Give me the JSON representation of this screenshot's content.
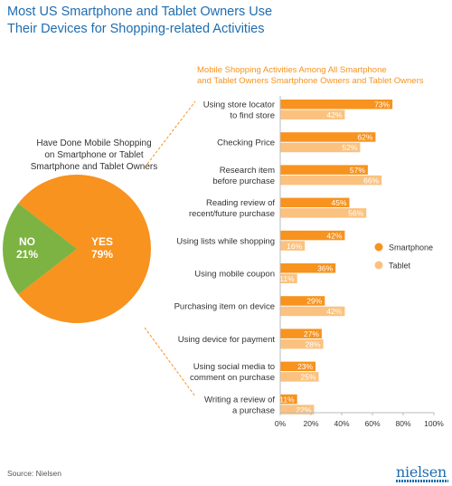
{
  "title": {
    "line1": "Most US Smartphone and Tablet Owners Use",
    "line2": "Their Devices for Shopping-related Activities"
  },
  "pie": {
    "heading": [
      "Have Done Mobile Shopping",
      "on Smartphone or Tablet",
      "Smartphone and Tablet Owners"
    ]
  },
  "footer": {
    "source": "Source: Nielsen",
    "logo": "nielsen"
  },
  "colors": {
    "smartphone": "#f7931e",
    "tablet": "#fbc27f",
    "pie_yes": "#f7931e",
    "pie_no": "#7cb342",
    "title": "#1f6db0",
    "bar_heading": "#f7931e",
    "connector": "#f7931e"
  },
  "chart_data": [
    {
      "type": "pie",
      "slices": [
        {
          "label": "YES",
          "value": 79,
          "value_label": "79%"
        },
        {
          "label": "NO",
          "value": 21,
          "value_label": "21%"
        }
      ]
    },
    {
      "type": "bar",
      "orientation": "horizontal",
      "title": "Mobile Shopping Activities Among All Smartphone and Tablet Owners Smartphone Owners and Tablet Owners",
      "title_lines": [
        "Mobile Shopping Activities Among All Smartphone",
        "and Tablet Owners Smartphone Owners and Tablet Owners"
      ],
      "categories": [
        [
          "Using store locator",
          "to find store"
        ],
        [
          "Checking Price"
        ],
        [
          "Research item",
          "before purchase"
        ],
        [
          "Reading review of",
          "recent/future purchase"
        ],
        [
          "Using lists while shopping"
        ],
        [
          "Using mobile coupon"
        ],
        [
          "Purchasing item on device"
        ],
        [
          "Using device for payment"
        ],
        [
          "Using social media to",
          "comment on purchase"
        ],
        [
          "Writing a review of",
          "a purchase"
        ]
      ],
      "series": [
        {
          "name": "Smartphone",
          "values": [
            73,
            62,
            57,
            45,
            42,
            36,
            29,
            27,
            23,
            11
          ]
        },
        {
          "name": "Tablet",
          "values": [
            42,
            52,
            66,
            56,
            16,
            11,
            42,
            28,
            25,
            22
          ]
        }
      ],
      "xlim": [
        0,
        100
      ],
      "xticks": [
        "0%",
        "20%",
        "40%",
        "60%",
        "80%",
        "100%"
      ],
      "legend_position": "right",
      "grid": false
    }
  ]
}
